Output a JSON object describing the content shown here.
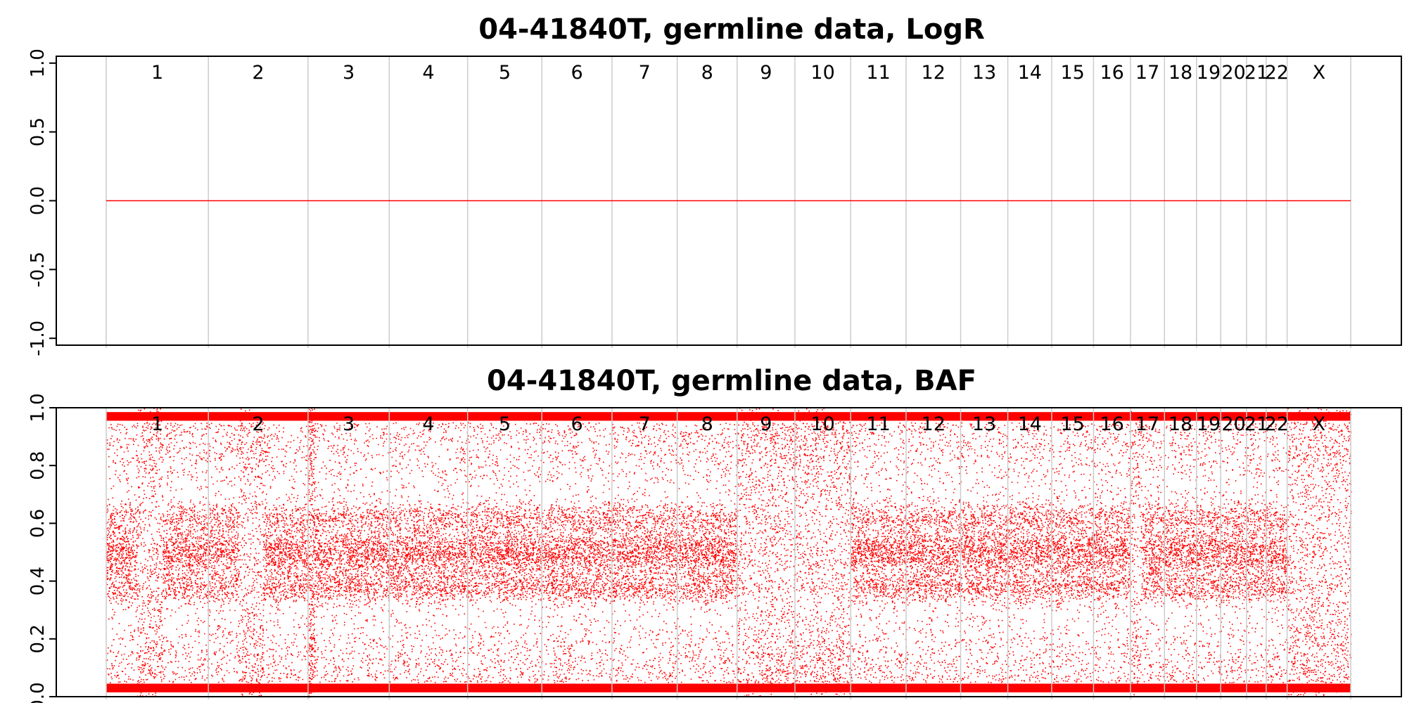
{
  "chart_data": [
    {
      "type": "scatter",
      "title": "04-41840T, germline data, LogR",
      "xlabel": "",
      "ylabel": "",
      "ylim": [
        -1.05,
        1.05
      ],
      "yticks": [
        "-1.0",
        "-0.5",
        "0.0",
        "0.5",
        "1.0"
      ],
      "ytick_values": [
        -1.0,
        -0.5,
        0.0,
        0.5,
        1.0
      ],
      "grid": "vertical separators at chromosome boundaries",
      "chromosomes": [
        "1",
        "2",
        "3",
        "4",
        "5",
        "6",
        "7",
        "8",
        "9",
        "10",
        "11",
        "12",
        "13",
        "14",
        "15",
        "16",
        "17",
        "18",
        "19",
        "20",
        "21",
        "22",
        "X"
      ],
      "chromosome_widths": [
        249,
        243,
        198,
        191,
        181,
        171,
        159,
        146,
        141,
        136,
        135,
        133,
        115,
        107,
        102,
        90,
        83,
        78,
        59,
        63,
        48,
        51,
        155
      ],
      "series": [
        {
          "values": "LogR = 0.0 for all probes on all chromosomes",
          "constant_value": 0.0,
          "color": "#ff0000"
        }
      ]
    },
    {
      "type": "scatter",
      "title": "04-41840T, germline data, BAF",
      "xlabel": "",
      "ylabel": "",
      "ylim": [
        0.0,
        1.0
      ],
      "yticks": [
        "0.0",
        "0.2",
        "0.4",
        "0.6",
        "0.8",
        "1.0"
      ],
      "ytick_values": [
        0.0,
        0.2,
        0.4,
        0.6,
        0.8,
        1.0
      ],
      "grid": "vertical separators at chromosome boundaries",
      "chromosomes": [
        "1",
        "2",
        "3",
        "4",
        "5",
        "6",
        "7",
        "8",
        "9",
        "10",
        "11",
        "12",
        "13",
        "14",
        "15",
        "16",
        "17",
        "18",
        "19",
        "20",
        "21",
        "22",
        "X"
      ],
      "chromosome_widths": [
        249,
        243,
        198,
        191,
        181,
        171,
        159,
        146,
        141,
        136,
        135,
        133,
        115,
        107,
        102,
        90,
        83,
        78,
        59,
        63,
        48,
        51,
        155
      ],
      "series": [
        {
          "values": "dense B-allele frequency point cloud; homozygous bands near 0.03 and 0.97, heterozygous bands near 0.5",
          "color": "#ff0000"
        }
      ],
      "regions_low_heterozygous_density": [
        {
          "chromosome": "1",
          "part": "p-arm segment"
        },
        {
          "chromosome": "2",
          "part": "p-arm segment"
        },
        {
          "chromosome": "3",
          "part": "start"
        },
        {
          "chromosome": "9",
          "part": "whole"
        },
        {
          "chromosome": "10",
          "part": "whole"
        },
        {
          "chromosome": "17",
          "part": "p-arm"
        },
        {
          "chromosome": "X",
          "part": "whole"
        }
      ]
    }
  ]
}
